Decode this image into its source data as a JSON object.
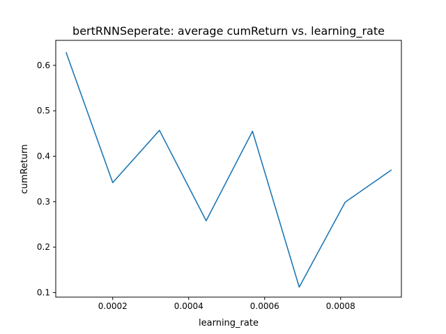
{
  "chart_data": {
    "type": "line",
    "title": "bertRNNSeperate: average cumReturn vs. learning_rate",
    "xlabel": "learning_rate",
    "ylabel": "cumReturn",
    "xlim": [
      5e-05,
      0.00096
    ],
    "ylim": [
      0.09,
      0.655
    ],
    "xticks": [
      {
        "value": 0.0002,
        "label": "0.0002"
      },
      {
        "value": 0.0004,
        "label": "0.0004"
      },
      {
        "value": 0.0006,
        "label": "0.0006"
      },
      {
        "value": 0.0008,
        "label": "0.0008"
      }
    ],
    "yticks": [
      {
        "value": 0.1,
        "label": "0.1"
      },
      {
        "value": 0.2,
        "label": "0.2"
      },
      {
        "value": 0.3,
        "label": "0.3"
      },
      {
        "value": 0.4,
        "label": "0.4"
      },
      {
        "value": 0.5,
        "label": "0.5"
      },
      {
        "value": 0.6,
        "label": "0.6"
      }
    ],
    "grid": false,
    "series": [
      {
        "color": "#1f77b4",
        "x": [
          7.7e-05,
          0.0002,
          0.000323,
          0.000446,
          0.000568,
          0.000691,
          0.000812,
          0.000934
        ],
        "y": [
          0.629,
          0.342,
          0.457,
          0.258,
          0.455,
          0.112,
          0.299,
          0.37
        ]
      }
    ]
  }
}
